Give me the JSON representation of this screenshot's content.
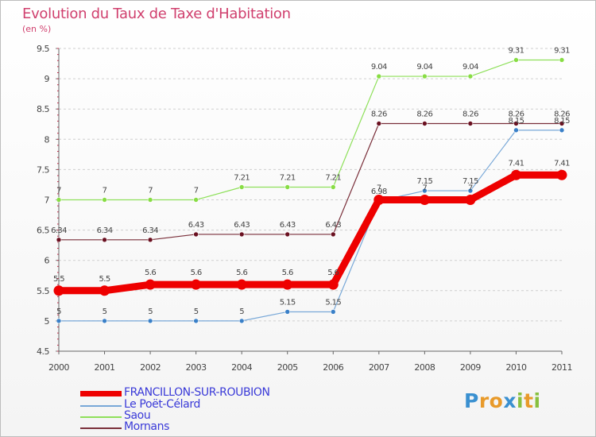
{
  "chart_data": {
    "type": "line",
    "title": "Evolution du Taux de Taxe d'Habitation",
    "subtitle": "(en %)",
    "xlabel": "",
    "ylabel": "",
    "x": [
      "2000",
      "2001",
      "2002",
      "2003",
      "2004",
      "2005",
      "2006",
      "2007",
      "2008",
      "2009",
      "2010",
      "2011"
    ],
    "ylim": [
      4.5,
      9.5
    ],
    "yticks": [
      "4.5",
      "5",
      "5.5",
      "6",
      "6.5",
      "7",
      "7.5",
      "8",
      "8.5",
      "9",
      "9.5"
    ],
    "grid": "horizontal dashed",
    "legend_position": "bottom-left",
    "series": [
      {
        "name": "Saou",
        "color": "#8ee05a",
        "point_color": "#88dd44",
        "width": 1.2,
        "values": [
          7,
          7,
          7,
          7,
          7.21,
          7.21,
          7.21,
          9.04,
          9.04,
          9.04,
          9.31,
          9.31
        ],
        "labels": [
          "7",
          "7",
          "7",
          "7",
          "7.21",
          "7.21",
          "7.21",
          "9.04",
          "9.04",
          "9.04",
          "9.31",
          "9.31"
        ]
      },
      {
        "name": "Mornans",
        "color": "#7a2f3a",
        "point_color": "#6a1020",
        "width": 1.2,
        "values": [
          6.34,
          6.34,
          6.34,
          6.43,
          6.43,
          6.43,
          6.43,
          8.26,
          8.26,
          8.26,
          8.26,
          8.26
        ],
        "labels": [
          "6.34",
          "6.34",
          "6.34",
          "6.43",
          "6.43",
          "6.43",
          "6.43",
          "8.26",
          "8.26",
          "8.26",
          "8.26",
          "8.26"
        ]
      },
      {
        "name": "Le Poët-Célard",
        "color": "#78a8d8",
        "point_color": "#3a80c8",
        "width": 1.2,
        "values": [
          5,
          5,
          5,
          5,
          5,
          5.15,
          5.15,
          6.98,
          7.15,
          7.15,
          8.15,
          8.15
        ],
        "labels": [
          "5",
          "5",
          "5",
          "5",
          "5",
          "5.15",
          "5.15",
          "6.98",
          "7.15",
          "7.15",
          "8.15",
          "8.15"
        ]
      },
      {
        "name": "FRANCILLON-SUR-ROUBION",
        "color": "#ee0000",
        "point_color": "#ee0000",
        "width": 9,
        "values": [
          5.5,
          5.5,
          5.6,
          5.6,
          5.6,
          5.6,
          5.6,
          7,
          7,
          7,
          7.41,
          7.41
        ],
        "labels": [
          "5.5",
          "5.5",
          "5.6",
          "5.6",
          "5.6",
          "5.6",
          "5.6",
          "7",
          "7",
          "7",
          "7.41",
          "7.41"
        ]
      }
    ],
    "legend": [
      "FRANCILLON-SUR-ROUBION",
      "Le Poët-Célard",
      "Saou",
      "Mornans"
    ]
  },
  "logo": {
    "letters": [
      "P",
      "r",
      "o",
      "x",
      "i",
      "t",
      "i"
    ],
    "colors": [
      "#3a90d0",
      "#e89a2a",
      "#e89a2a",
      "#3a90d0",
      "#88c040",
      "#e89a2a",
      "#88c040"
    ]
  }
}
